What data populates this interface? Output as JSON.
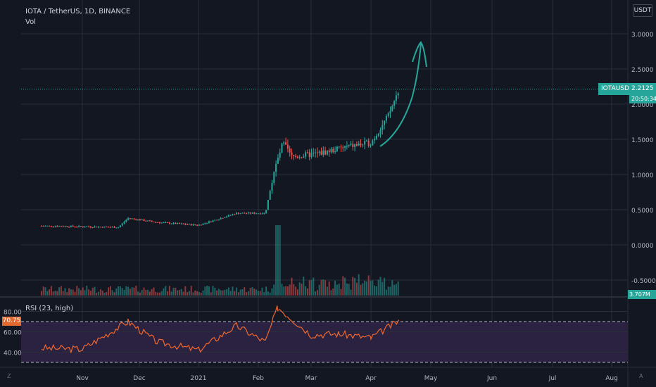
{
  "header": {
    "symbol_title": "IOTA / TetherUS, 1D, BINANCE",
    "vol_label": "Vol"
  },
  "currency_button": "USDT",
  "price_scale": [
    "3.0000",
    "2.5000",
    "2.0000",
    "1.5000",
    "1.0000",
    "0.5000",
    "0.0000",
    "-0.5000"
  ],
  "last_price": {
    "symbol": "IOTAUSDT",
    "value": "2.2125",
    "countdown": "20:50:34"
  },
  "volume_tag": "3.707M",
  "rsi": {
    "label": "RSI (23, high)",
    "scale": [
      "80.00",
      "60.00",
      "40.00"
    ],
    "current_value": "70.75"
  },
  "time_axis": [
    "Nov",
    "Dec",
    "2021",
    "Feb",
    "Mar",
    "Apr",
    "May",
    "Jun",
    "Jul",
    "Aug"
  ],
  "corners": {
    "bottom_left": "Z",
    "bottom_right": "A"
  },
  "colors": {
    "background": "#131722",
    "up": "#26a69a",
    "down": "#ef5350",
    "rsi_line": "#f0672e",
    "rsi_band": "#2a2240",
    "arrow": "#26a69a"
  },
  "chart_data": {
    "type": "candlestick",
    "title": "IOTA / TetherUS, 1D, BINANCE",
    "price_range": [
      -0.5,
      3.0
    ],
    "last_price": 2.2125,
    "price_path": [
      {
        "x": "Oct 10",
        "y": 0.27
      },
      {
        "x": "Nov 1",
        "y": 0.26
      },
      {
        "x": "Nov 20",
        "y": 0.25
      },
      {
        "x": "Nov 25",
        "y": 0.38
      },
      {
        "x": "Dec 10",
        "y": 0.32
      },
      {
        "x": "Jan 1",
        "y": 0.28
      },
      {
        "x": "Jan 20",
        "y": 0.45
      },
      {
        "x": "Feb 5",
        "y": 0.45
      },
      {
        "x": "Feb 10",
        "y": 1.05
      },
      {
        "x": "Feb 15",
        "y": 1.45
      },
      {
        "x": "Feb 20",
        "y": 1.25
      },
      {
        "x": "Mar 5",
        "y": 1.3
      },
      {
        "x": "Mar 20",
        "y": 1.4
      },
      {
        "x": "Apr 1",
        "y": 1.45
      },
      {
        "x": "Apr 10",
        "y": 1.85
      },
      {
        "x": "Apr 15",
        "y": 2.21
      }
    ],
    "rsi_levels": [
      70,
      30
    ],
    "rsi_range": [
      20,
      90
    ],
    "rsi_path": [
      {
        "x": "Oct 10",
        "y": 44
      },
      {
        "x": "Nov 1",
        "y": 43
      },
      {
        "x": "Nov 25",
        "y": 70
      },
      {
        "x": "Dec 10",
        "y": 50
      },
      {
        "x": "Jan 1",
        "y": 42
      },
      {
        "x": "Jan 20",
        "y": 66
      },
      {
        "x": "Feb 5",
        "y": 50
      },
      {
        "x": "Feb 12",
        "y": 84
      },
      {
        "x": "Mar 1",
        "y": 57
      },
      {
        "x": "Mar 15",
        "y": 58
      },
      {
        "x": "Apr 1",
        "y": 54
      },
      {
        "x": "Apr 15",
        "y": 70.75
      }
    ]
  }
}
